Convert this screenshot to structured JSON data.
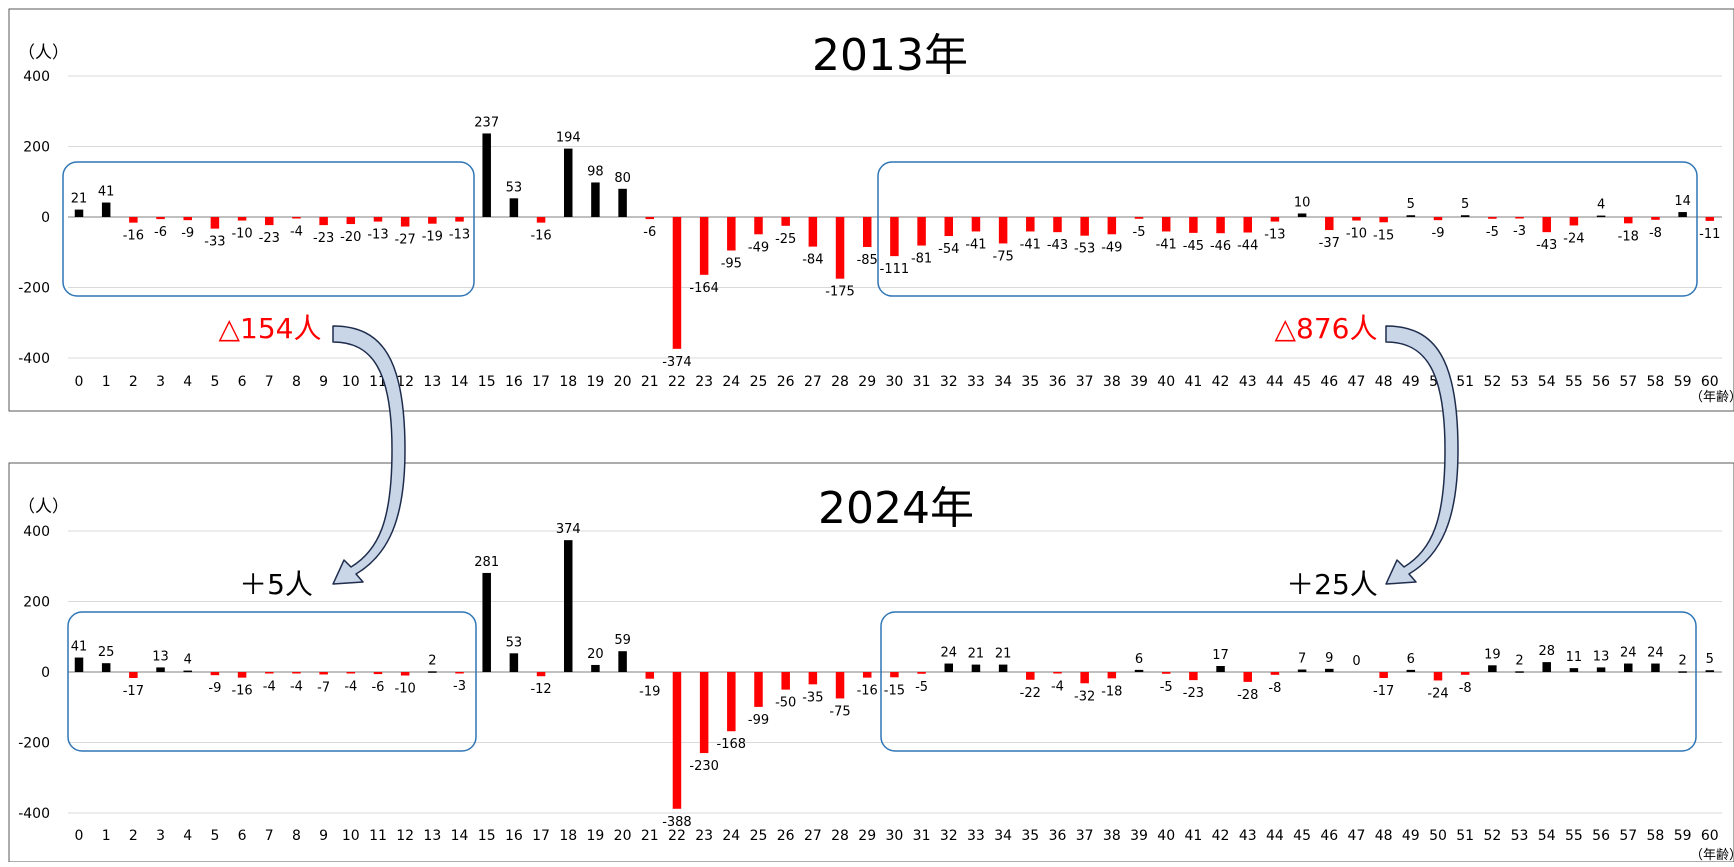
{
  "chart_data": [
    {
      "type": "bar",
      "title": "2013年",
      "ylabel": "（人）",
      "xlabel": "（年齢）",
      "ylim": [
        -400,
        400
      ],
      "yticks": [
        400,
        200,
        0,
        -200,
        -400
      ],
      "x": [
        0,
        1,
        2,
        3,
        4,
        5,
        6,
        7,
        8,
        9,
        10,
        11,
        12,
        13,
        14,
        15,
        16,
        17,
        18,
        19,
        20,
        21,
        22,
        23,
        24,
        25,
        26,
        27,
        28,
        29,
        30,
        31,
        32,
        33,
        34,
        35,
        36,
        37,
        38,
        39,
        40,
        41,
        42,
        43,
        44,
        45,
        46,
        47,
        48,
        49,
        50,
        51,
        52,
        53,
        54,
        55,
        56,
        57,
        58,
        59,
        60
      ],
      "values": [
        21,
        41,
        -16,
        -6,
        -9,
        -33,
        -10,
        -23,
        -4,
        -23,
        -20,
        -13,
        -27,
        -19,
        -13,
        237,
        53,
        -16,
        194,
        98,
        80,
        -6,
        -374,
        -164,
        -95,
        -49,
        -25,
        -84,
        -175,
        -85,
        -111,
        -81,
        -54,
        -41,
        -75,
        -41,
        -43,
        -53,
        -49,
        -5,
        -41,
        -45,
        -46,
        -44,
        -13,
        10,
        -37,
        -10,
        -15,
        5,
        -9,
        5,
        -5,
        -3,
        -43,
        -24,
        4,
        -18,
        -8,
        14,
        -11
      ],
      "grid": true,
      "colors": {
        "positive": "#000000",
        "negative": "#ff0000"
      },
      "annotations": {
        "young_group": "△154人",
        "middle_group": "△876人"
      }
    },
    {
      "type": "bar",
      "title": "2024年",
      "ylabel": "（人）",
      "xlabel": "（年齢）",
      "ylim": [
        -400,
        400
      ],
      "yticks": [
        400,
        200,
        0,
        -200,
        -400
      ],
      "x": [
        0,
        1,
        2,
        3,
        4,
        5,
        6,
        7,
        8,
        9,
        10,
        11,
        12,
        13,
        14,
        15,
        16,
        17,
        18,
        19,
        20,
        21,
        22,
        23,
        24,
        25,
        26,
        27,
        28,
        29,
        30,
        31,
        32,
        33,
        34,
        35,
        36,
        37,
        38,
        39,
        40,
        41,
        42,
        43,
        44,
        45,
        46,
        47,
        48,
        49,
        50,
        51,
        52,
        53,
        54,
        55,
        56,
        57,
        58,
        59,
        60
      ],
      "values": [
        41,
        25,
        -17,
        13,
        4,
        -9,
        -16,
        -4,
        -4,
        -7,
        -4,
        -6,
        -10,
        2,
        -3,
        281,
        53,
        -12,
        374,
        20,
        59,
        -19,
        -388,
        -230,
        -168,
        -99,
        -50,
        -35,
        -75,
        -16,
        -15,
        -5,
        24,
        21,
        21,
        -22,
        -4,
        -32,
        -18,
        6,
        -5,
        -23,
        17,
        -28,
        -8,
        7,
        9,
        0,
        -17,
        6,
        -24,
        -8,
        19,
        2,
        28,
        11,
        13,
        24,
        24,
        2,
        5
      ],
      "grid": true,
      "colors": {
        "positive": "#000000",
        "negative": "#ff0000"
      },
      "annotations": {
        "young_group": "＋5人",
        "middle_group": "＋25人"
      }
    }
  ],
  "colors": {
    "box": "#2e75b6",
    "arrow_fill": "#c9d6e8",
    "arrow_stroke": "#1f2d4d",
    "frame": "#595959",
    "grid": "#d9d9d9",
    "annotation_red": "#ff0000"
  }
}
